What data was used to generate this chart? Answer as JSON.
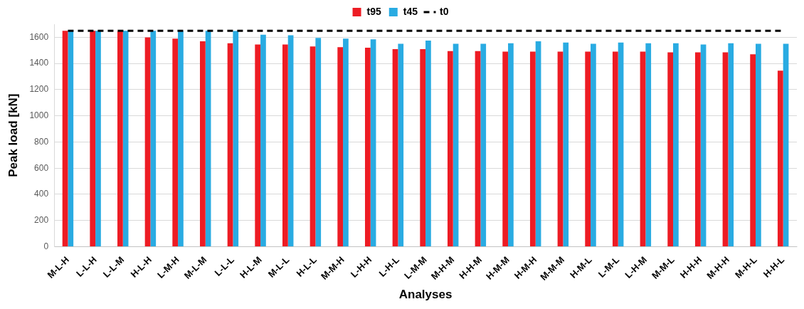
{
  "chart_data": {
    "type": "bar",
    "xlabel": "Analyses",
    "ylabel": "Peak load [kN]",
    "categories": [
      "M-L-H",
      "L-L-H",
      "L-L-M",
      "H-L-H",
      "L-M-H",
      "M-L-M",
      "L-L-L",
      "H-L-M",
      "M-L-L",
      "H-L-L",
      "M-M-H",
      "L-H-H",
      "L-H-L",
      "L-M-M",
      "M-H-M",
      "H-H-M",
      "H-M-M",
      "H-M-H",
      "M-M-M",
      "H-M-L",
      "L-M-L",
      "L-H-M",
      "M-M-L",
      "H-H-H",
      "M-H-H",
      "M-H-L",
      "H-H-L"
    ],
    "series": [
      {
        "name": "t95",
        "color": "#ed1c24",
        "values": [
          1650,
          1650,
          1645,
          1600,
          1590,
          1570,
          1555,
          1545,
          1545,
          1530,
          1525,
          1520,
          1510,
          1510,
          1495,
          1495,
          1490,
          1490,
          1490,
          1490,
          1490,
          1490,
          1485,
          1485,
          1485,
          1470,
          1345
        ]
      },
      {
        "name": "t45",
        "color": "#29abe2",
        "values": [
          1650,
          1650,
          1650,
          1650,
          1650,
          1650,
          1648,
          1620,
          1615,
          1595,
          1590,
          1585,
          1550,
          1575,
          1550,
          1550,
          1555,
          1570,
          1560,
          1550,
          1560,
          1555,
          1555,
          1545,
          1555,
          1550,
          1550
        ]
      },
      {
        "name": "t0",
        "type": "line",
        "color": "#000000",
        "line_style": "dashed",
        "marker": "none",
        "values": [
          1650,
          1650,
          1650,
          1650,
          1650,
          1650,
          1650,
          1650,
          1650,
          1650,
          1650,
          1650,
          1650,
          1650,
          1650,
          1650,
          1650,
          1650,
          1650,
          1650,
          1650,
          1650,
          1650,
          1650,
          1650,
          1650,
          1650
        ]
      }
    ],
    "ylim": [
      0,
      1700
    ],
    "yticks": [
      0,
      200,
      400,
      600,
      800,
      1000,
      1200,
      1400,
      1600
    ],
    "grid": "y",
    "legend": "top"
  }
}
